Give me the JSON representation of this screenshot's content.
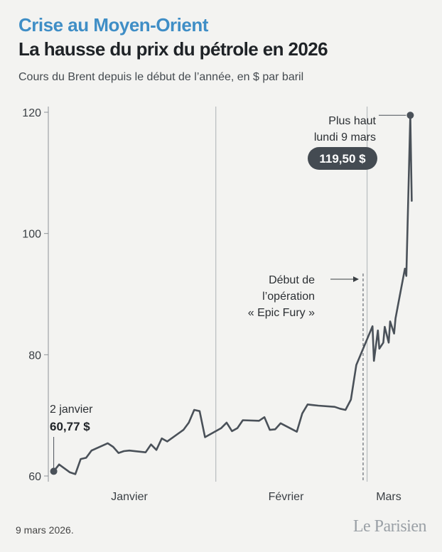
{
  "header": {
    "kicker": "Crise au Moyen-Orient",
    "title": "La hausse du prix du pétrole en 2026"
  },
  "chart_data": {
    "type": "line",
    "subtitle": "Cours du Brent depuis le début de l’année, en $ par baril",
    "y_ticks": [
      "120",
      "100",
      "80",
      "60"
    ],
    "ylim": [
      60,
      120
    ],
    "month_labels": [
      "Janvier",
      "Février",
      "Mars"
    ],
    "grid": "vertical month separators",
    "series": [
      {
        "x": [
          "2026-01-02",
          "2026-01-03",
          "2026-01-05",
          "2026-01-06",
          "2026-01-07",
          "2026-01-08",
          "2026-01-09",
          "2026-01-12",
          "2026-01-13",
          "2026-01-14",
          "2026-01-15",
          "2026-01-16",
          "2026-01-19",
          "2026-01-20",
          "2026-01-21",
          "2026-01-22",
          "2026-01-23",
          "2026-01-26",
          "2026-01-27",
          "2026-01-28",
          "2026-01-29",
          "2026-01-30",
          "2026-02-02",
          "2026-02-03",
          "2026-02-04",
          "2026-02-05",
          "2026-02-06",
          "2026-02-09",
          "2026-02-10",
          "2026-02-11",
          "2026-02-12",
          "2026-02-13",
          "2026-02-16",
          "2026-02-17",
          "2026-02-18",
          "2026-02-19",
          "2026-02-20",
          "2026-02-23",
          "2026-02-24",
          "2026-02-25",
          "2026-02-26",
          "2026-02-27",
          "2026-03-02",
          "2026-03-02",
          "2026-03-03",
          "2026-03-03",
          "2026-03-04",
          "2026-03-04",
          "2026-03-05",
          "2026-03-05",
          "2026-03-06",
          "2026-03-06",
          "2026-03-07",
          "2026-03-08",
          "2026-03-08",
          "2026-03-09",
          "2026-03-09"
        ],
        "values": [
          60.77,
          61.9,
          60.6,
          60.3,
          62.8,
          63.0,
          64.2,
          65.4,
          64.8,
          63.8,
          64.1,
          64.2,
          63.9,
          65.2,
          64.3,
          66.2,
          65.7,
          67.6,
          68.8,
          70.9,
          70.7,
          66.4,
          67.9,
          68.8,
          67.4,
          67.9,
          69.2,
          69.1,
          69.7,
          67.6,
          67.7,
          68.7,
          67.3,
          70.3,
          71.8,
          71.7,
          71.6,
          71.4,
          71.1,
          70.9,
          72.6,
          78.3,
          84.7,
          79.0,
          84.0,
          81.0,
          82.0,
          84.6,
          82.0,
          85.5,
          83.5,
          86.0,
          89.5,
          94.2,
          93.0,
          119.5,
          105.4
        ]
      }
    ],
    "annotations": {
      "start_line1": "2 janvier",
      "start_value": "60,77 $",
      "peak_line1": "Plus haut",
      "peak_line2": "lundi 9 mars",
      "peak_value": "119,50 $",
      "event_line1": "Début de",
      "event_line2": "l’opération",
      "event_line3": "« Epic Fury »",
      "event_date": "2026-02-28"
    },
    "colors": {
      "line": "#4a5159",
      "kicker": "#3f8ec6",
      "grid": "#b8bcbf"
    }
  },
  "footer": {
    "date": "9 mars 2026.",
    "brand": "Le Parisien"
  }
}
